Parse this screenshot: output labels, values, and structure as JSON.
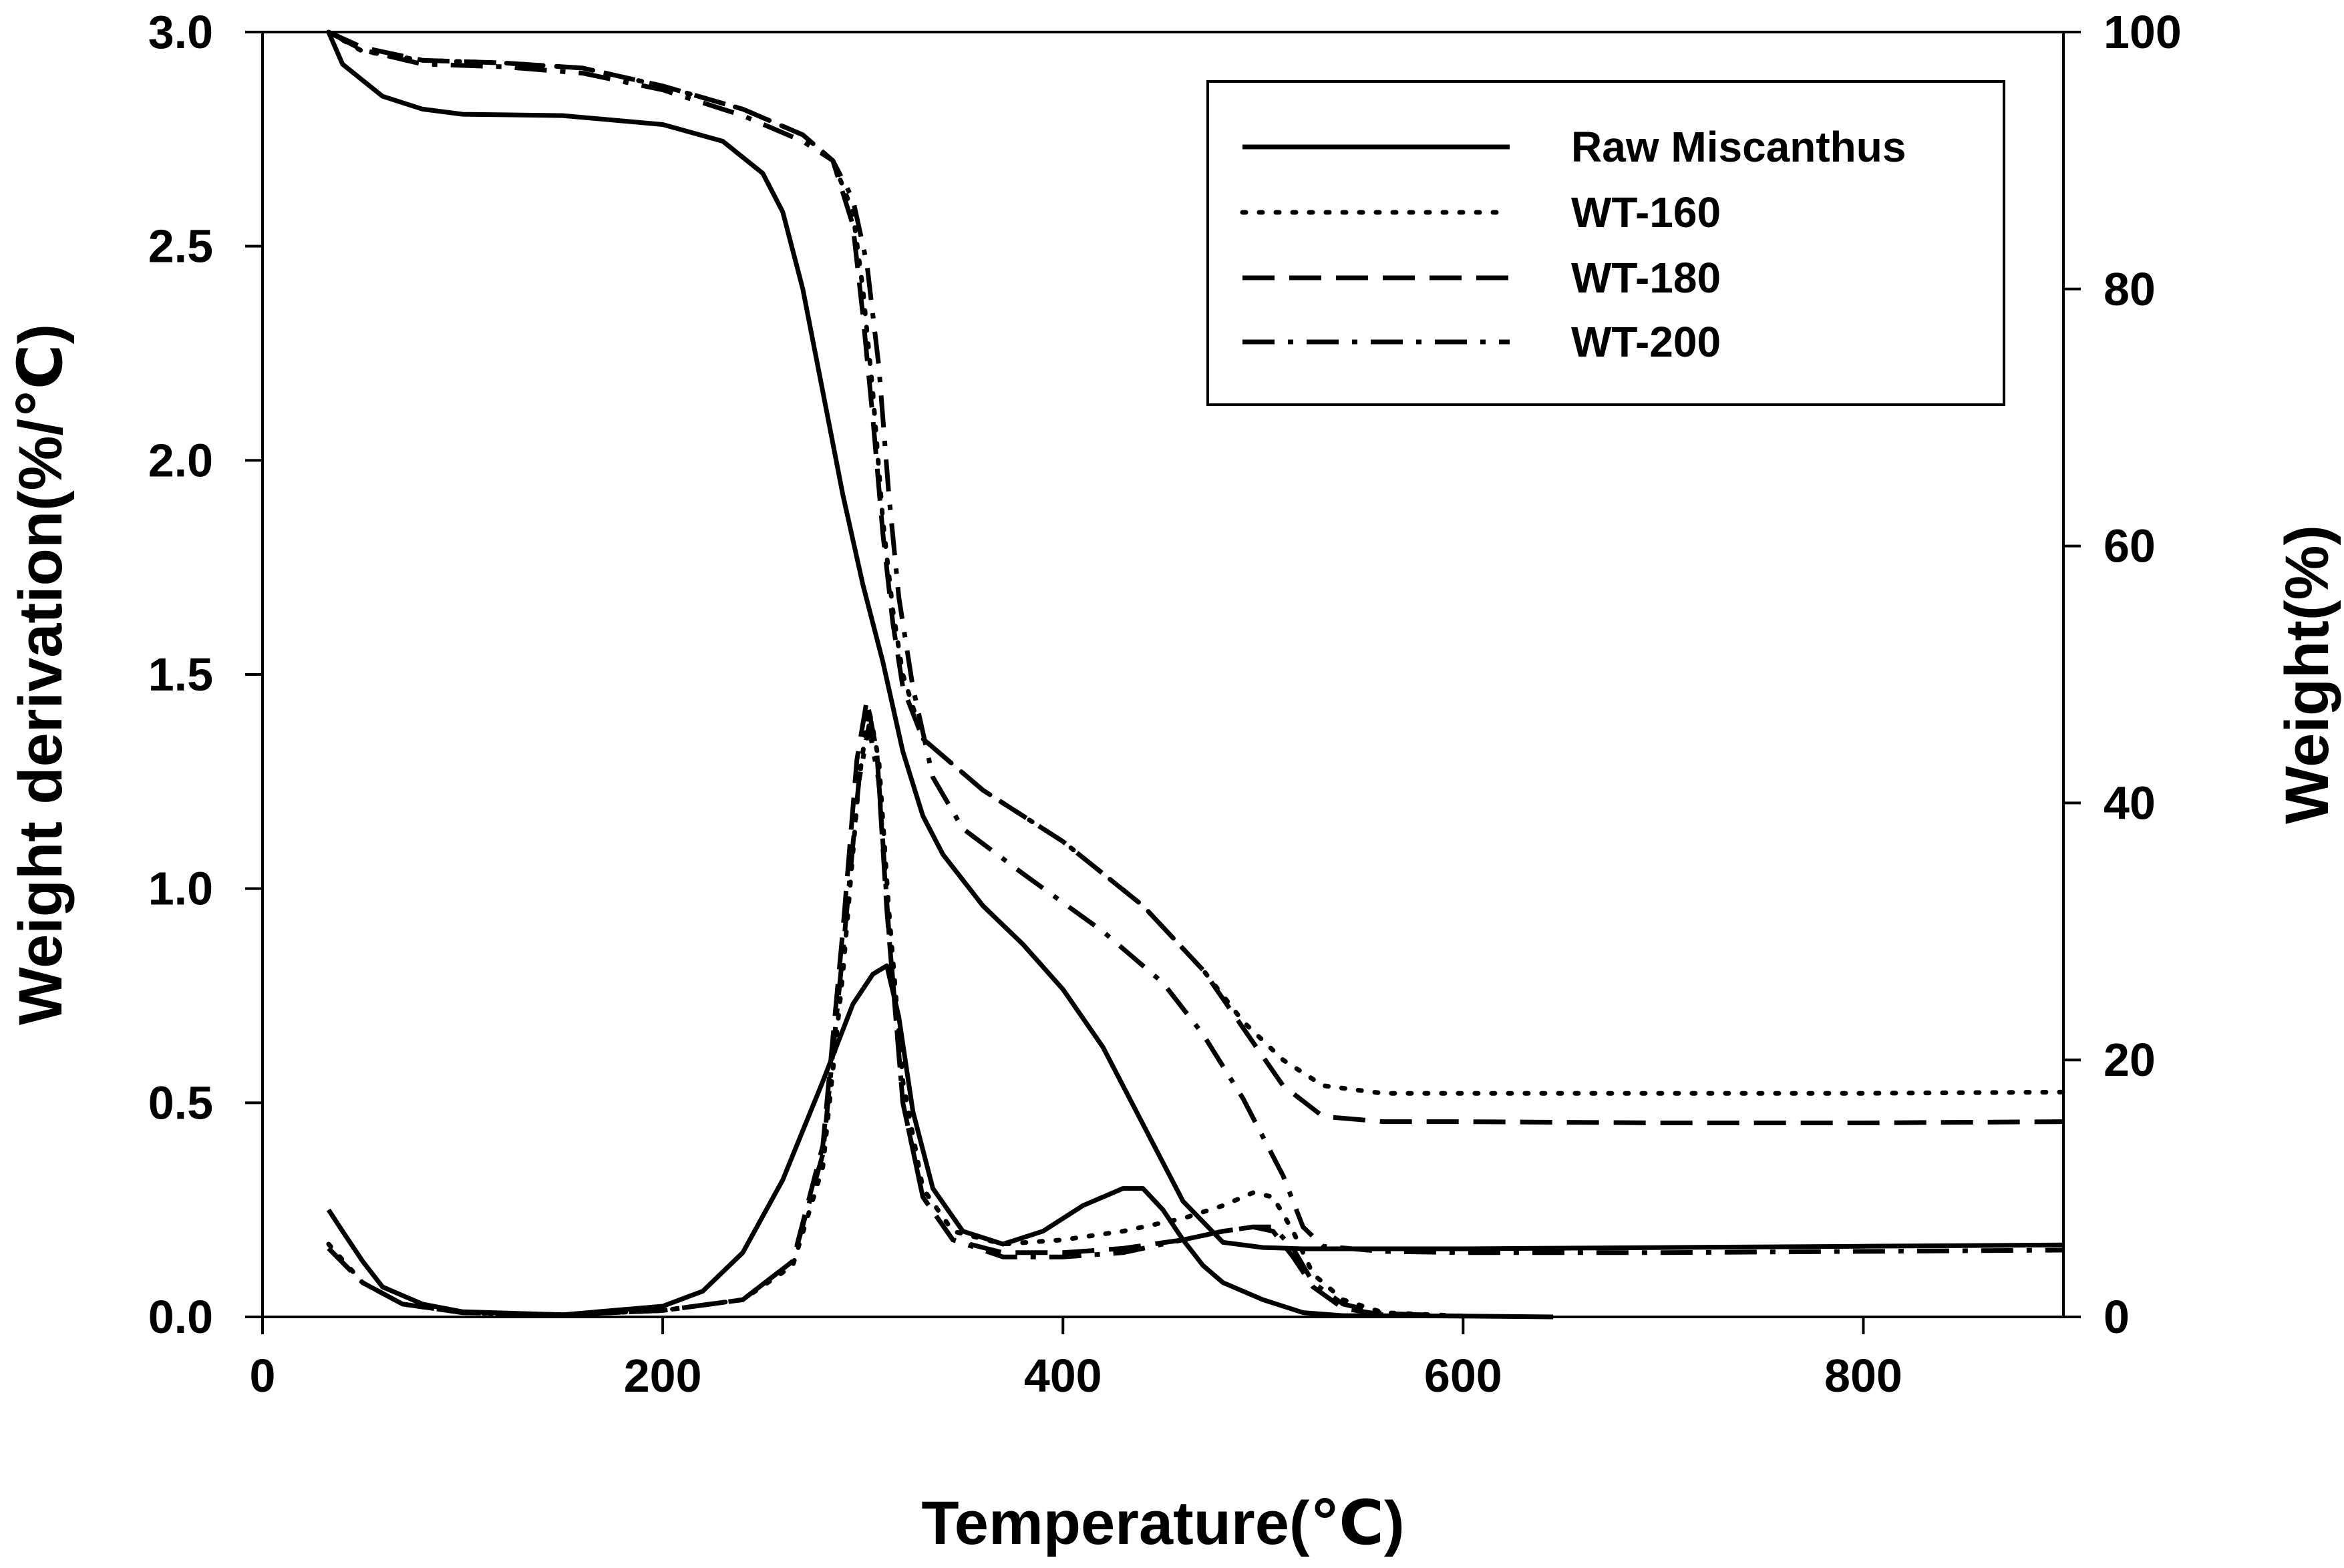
{
  "chart_data": {
    "type": "line",
    "title": "",
    "xlabel": "Temperature(℃)",
    "ylabel_left": "Weight derivation(%/℃)",
    "ylabel_right": "Weight(%)",
    "xlim": [
      0,
      900
    ],
    "ylim_left": [
      0,
      3.0
    ],
    "ylim_right": [
      0,
      100
    ],
    "x_ticks": [
      "0",
      "200",
      "400",
      "600",
      "800"
    ],
    "x_tick_values": [
      0,
      200,
      400,
      600,
      800
    ],
    "y_left_ticks": [
      "0.0",
      "0.5",
      "1.0",
      "1.5",
      "2.0",
      "2.5",
      "3.0"
    ],
    "y_left_tick_values": [
      0,
      0.5,
      1.0,
      1.5,
      2.0,
      2.5,
      3.0
    ],
    "y_right_ticks": [
      "0",
      "20",
      "40",
      "60",
      "80",
      "100"
    ],
    "y_right_tick_values": [
      0,
      20,
      40,
      60,
      80,
      100
    ],
    "grid": false,
    "legend_position": "top-right",
    "series": [
      {
        "name": "Raw Miscanthus",
        "style": "solid",
        "weight_curve": {
          "axis": "right",
          "points": [
            [
              33,
              100
            ],
            [
              40,
              97.5
            ],
            [
              60,
              95
            ],
            [
              80,
              94
            ],
            [
              100,
              93.6
            ],
            [
              150,
              93.5
            ],
            [
              200,
              92.8
            ],
            [
              230,
              91.5
            ],
            [
              250,
              89
            ],
            [
              260,
              86
            ],
            [
              270,
              80
            ],
            [
              280,
              72
            ],
            [
              290,
              64
            ],
            [
              300,
              57
            ],
            [
              310,
              51
            ],
            [
              320,
              44
            ],
            [
              330,
              39
            ],
            [
              340,
              36
            ],
            [
              360,
              32
            ],
            [
              380,
              29
            ],
            [
              400,
              25.5
            ],
            [
              420,
              21
            ],
            [
              440,
              15
            ],
            [
              460,
              9
            ],
            [
              480,
              5.8
            ],
            [
              500,
              5.4
            ],
            [
              520,
              5.3
            ],
            [
              600,
              5.3
            ],
            [
              700,
              5.4
            ],
            [
              800,
              5.5
            ],
            [
              900,
              5.6
            ]
          ]
        },
        "derivative_curve": {
          "axis": "left",
          "points": [
            [
              33,
              0.25
            ],
            [
              40,
              0.2
            ],
            [
              50,
              0.13
            ],
            [
              60,
              0.07
            ],
            [
              80,
              0.03
            ],
            [
              100,
              0.012
            ],
            [
              150,
              0.005
            ],
            [
              200,
              0.025
            ],
            [
              220,
              0.06
            ],
            [
              240,
              0.15
            ],
            [
              260,
              0.32
            ],
            [
              280,
              0.55
            ],
            [
              295,
              0.73
            ],
            [
              305,
              0.8
            ],
            [
              312,
              0.82
            ],
            [
              318,
              0.7
            ],
            [
              325,
              0.48
            ],
            [
              335,
              0.3
            ],
            [
              350,
              0.2
            ],
            [
              370,
              0.17
            ],
            [
              390,
              0.2
            ],
            [
              410,
              0.26
            ],
            [
              430,
              0.3
            ],
            [
              440,
              0.3
            ],
            [
              450,
              0.25
            ],
            [
              460,
              0.18
            ],
            [
              470,
              0.12
            ],
            [
              480,
              0.08
            ],
            [
              500,
              0.04
            ],
            [
              520,
              0.01
            ],
            [
              540,
              0.003
            ],
            [
              600,
              0.002
            ],
            [
              645,
              0
            ]
          ]
        }
      },
      {
        "name": "WT-160",
        "style": "dotted",
        "weight_curve": {
          "axis": "right",
          "points": [
            [
              33,
              100
            ],
            [
              50,
              98.5
            ],
            [
              80,
              97.8
            ],
            [
              120,
              97.6
            ],
            [
              160,
              97.2
            ],
            [
              200,
              95.8
            ],
            [
              240,
              94
            ],
            [
              270,
              92
            ],
            [
              285,
              90
            ],
            [
              295,
              86
            ],
            [
              300,
              80
            ],
            [
              305,
              72
            ],
            [
              310,
              62
            ],
            [
              315,
              55
            ],
            [
              320,
              50
            ],
            [
              330,
              45
            ],
            [
              360,
              41
            ],
            [
              400,
              37
            ],
            [
              440,
              32
            ],
            [
              470,
              27
            ],
            [
              490,
              23
            ],
            [
              510,
              20
            ],
            [
              530,
              18
            ],
            [
              560,
              17.4
            ],
            [
              600,
              17.4
            ],
            [
              700,
              17.4
            ],
            [
              800,
              17.4
            ],
            [
              900,
              17.5
            ]
          ]
        },
        "derivative_curve": {
          "axis": "left",
          "points": [
            [
              33,
              0.17
            ],
            [
              50,
              0.08
            ],
            [
              70,
              0.03
            ],
            [
              100,
              0.01
            ],
            [
              150,
              0.005
            ],
            [
              200,
              0.015
            ],
            [
              240,
              0.04
            ],
            [
              265,
              0.12
            ],
            [
              280,
              0.35
            ],
            [
              290,
              0.8
            ],
            [
              298,
              1.25
            ],
            [
              303,
              1.42
            ],
            [
              308,
              1.3
            ],
            [
              313,
              0.95
            ],
            [
              320,
              0.55
            ],
            [
              330,
              0.3
            ],
            [
              345,
              0.2
            ],
            [
              370,
              0.17
            ],
            [
              400,
              0.18
            ],
            [
              430,
              0.2
            ],
            [
              460,
              0.23
            ],
            [
              480,
              0.26
            ],
            [
              495,
              0.29
            ],
            [
              505,
              0.28
            ],
            [
              515,
              0.2
            ],
            [
              525,
              0.1
            ],
            [
              540,
              0.04
            ],
            [
              560,
              0.01
            ],
            [
              600,
              0.002
            ]
          ]
        }
      },
      {
        "name": "WT-180",
        "style": "dashed",
        "weight_curve": {
          "axis": "right",
          "points": [
            [
              33,
              100
            ],
            [
              50,
              98.8
            ],
            [
              80,
              97.8
            ],
            [
              120,
              97.6
            ],
            [
              160,
              97.2
            ],
            [
              200,
              95.8
            ],
            [
              240,
              94
            ],
            [
              270,
              92
            ],
            [
              285,
              90
            ],
            [
              295,
              85
            ],
            [
              300,
              78
            ],
            [
              305,
              70
            ],
            [
              310,
              61
            ],
            [
              315,
              54
            ],
            [
              320,
              49
            ],
            [
              330,
              45
            ],
            [
              360,
              41
            ],
            [
              400,
              37
            ],
            [
              440,
              32
            ],
            [
              470,
              27
            ],
            [
              490,
              22.5
            ],
            [
              510,
              18
            ],
            [
              530,
              15.6
            ],
            [
              560,
              15.2
            ],
            [
              600,
              15.2
            ],
            [
              700,
              15.1
            ],
            [
              800,
              15.1
            ],
            [
              900,
              15.2
            ]
          ]
        },
        "derivative_curve": {
          "axis": "left",
          "points": [
            [
              33,
              0.16
            ],
            [
              50,
              0.08
            ],
            [
              70,
              0.03
            ],
            [
              100,
              0.01
            ],
            [
              150,
              0.005
            ],
            [
              200,
              0.015
            ],
            [
              240,
              0.04
            ],
            [
              265,
              0.13
            ],
            [
              280,
              0.4
            ],
            [
              290,
              0.9
            ],
            [
              297,
              1.3
            ],
            [
              302,
              1.44
            ],
            [
              307,
              1.32
            ],
            [
              312,
              0.95
            ],
            [
              320,
              0.5
            ],
            [
              330,
              0.28
            ],
            [
              345,
              0.18
            ],
            [
              370,
              0.15
            ],
            [
              400,
              0.15
            ],
            [
              430,
              0.16
            ],
            [
              460,
              0.18
            ],
            [
              480,
              0.2
            ],
            [
              495,
              0.21
            ],
            [
              505,
              0.2
            ],
            [
              515,
              0.14
            ],
            [
              525,
              0.07
            ],
            [
              540,
              0.02
            ],
            [
              560,
              0.005
            ],
            [
              600,
              0.002
            ]
          ]
        }
      },
      {
        "name": "WT-200",
        "style": "dashdot",
        "weight_curve": {
          "axis": "right",
          "points": [
            [
              33,
              100
            ],
            [
              50,
              98.6
            ],
            [
              80,
              97.5
            ],
            [
              120,
              97.3
            ],
            [
              160,
              96.8
            ],
            [
              200,
              95.5
            ],
            [
              240,
              93.5
            ],
            [
              270,
              91.5
            ],
            [
              285,
              90
            ],
            [
              295,
              87
            ],
            [
              302,
              82
            ],
            [
              308,
              74
            ],
            [
              313,
              64
            ],
            [
              318,
              56
            ],
            [
              325,
              49
            ],
            [
              335,
              42
            ],
            [
              350,
              38
            ],
            [
              380,
              34.5
            ],
            [
              420,
              30
            ],
            [
              450,
              26
            ],
            [
              470,
              22
            ],
            [
              490,
              17
            ],
            [
              510,
              11
            ],
            [
              520,
              7
            ],
            [
              530,
              5.5
            ],
            [
              560,
              5.1
            ],
            [
              600,
              5
            ],
            [
              700,
              5
            ],
            [
              800,
              5.1
            ],
            [
              900,
              5.2
            ]
          ]
        },
        "derivative_curve": {
          "axis": "left",
          "points": [
            [
              33,
              0.16
            ],
            [
              50,
              0.08
            ],
            [
              70,
              0.03
            ],
            [
              100,
              0.01
            ],
            [
              150,
              0.005
            ],
            [
              200,
              0.015
            ],
            [
              240,
              0.04
            ],
            [
              265,
              0.13
            ],
            [
              280,
              0.38
            ],
            [
              290,
              0.85
            ],
            [
              298,
              1.25
            ],
            [
              303,
              1.38
            ],
            [
              308,
              1.25
            ],
            [
              313,
              0.9
            ],
            [
              320,
              0.5
            ],
            [
              330,
              0.28
            ],
            [
              345,
              0.18
            ],
            [
              370,
              0.14
            ],
            [
              400,
              0.14
            ],
            [
              430,
              0.15
            ],
            [
              460,
              0.18
            ],
            [
              480,
              0.2
            ],
            [
              495,
              0.21
            ],
            [
              505,
              0.21
            ],
            [
              515,
              0.16
            ],
            [
              525,
              0.08
            ],
            [
              540,
              0.03
            ],
            [
              560,
              0.008
            ],
            [
              600,
              0.002
            ]
          ]
        }
      }
    ]
  }
}
